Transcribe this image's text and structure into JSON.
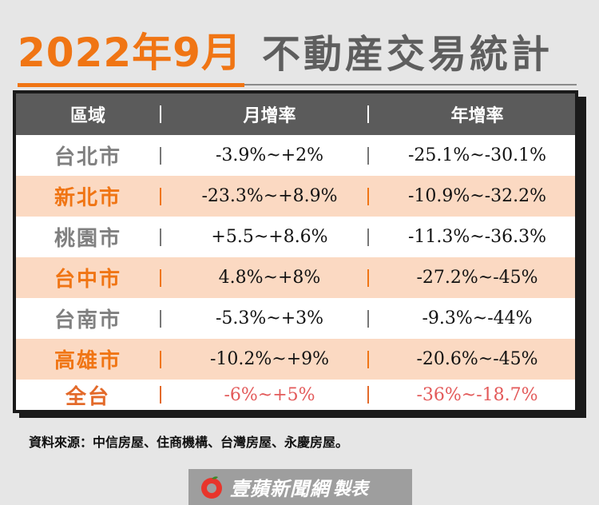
{
  "title": {
    "accent": "2022年9月",
    "main": "不動産交易統計"
  },
  "table": {
    "headers": [
      "區域",
      "月增率",
      "年增率"
    ],
    "rows": [
      {
        "region": "台北市",
        "monthly": "-3.9%~+2%",
        "yearly": "-25.1%~-30.1%"
      },
      {
        "region": "新北市",
        "monthly": "-23.3%~+8.9%",
        "yearly": "-10.9%~-32.2%"
      },
      {
        "region": "桃園市",
        "monthly": "+5.5~+8.6%",
        "yearly": "-11.3%~-36.3%"
      },
      {
        "region": "台中市",
        "monthly": "4.8%~+8%",
        "yearly": "-27.2%~-45%"
      },
      {
        "region": "台南市",
        "monthly": "-5.3%~+3%",
        "yearly": "-9.3%~-44%"
      },
      {
        "region": "高雄市",
        "monthly": "-10.2%~+9%",
        "yearly": "-20.6%~-45%"
      },
      {
        "region": "全台",
        "monthly": "-6%~+5%",
        "yearly": "-36%~-18.7%"
      }
    ]
  },
  "source": "資料來源：中信房屋、住商機構、台灣房屋、永慶房屋。",
  "brand": {
    "name": "壹蘋新聞網",
    "suffix": "製表",
    "logo": "apple-logo-icon"
  },
  "colors": {
    "accent": "#f07514",
    "header_bg": "#5b5b5b",
    "row_alt": "#fbd9c2",
    "total_text": "#e35a5a"
  }
}
